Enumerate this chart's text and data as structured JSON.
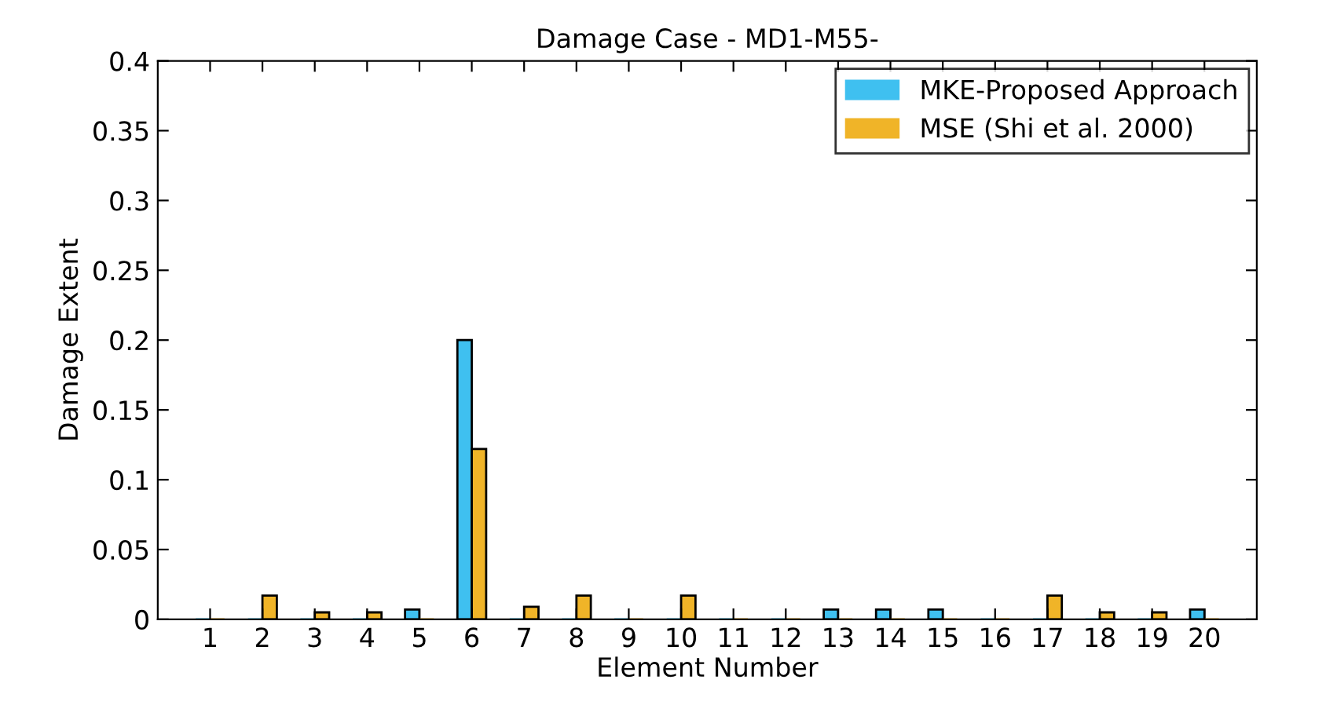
{
  "chart_data": {
    "type": "bar",
    "title": "Damage Case - MD1-M55-",
    "xlabel": "Element Number",
    "ylabel": "Damage Extent",
    "categories": [
      "1",
      "2",
      "3",
      "4",
      "5",
      "6",
      "7",
      "8",
      "9",
      "10",
      "11",
      "12",
      "13",
      "14",
      "15",
      "16",
      "17",
      "18",
      "19",
      "20"
    ],
    "series": [
      {
        "name": "MKE-Proposed Approach",
        "color": "#3fc0f0",
        "values": [
          0,
          0,
          0,
          0,
          0.007,
          0.2,
          0,
          0,
          0,
          0,
          0,
          0,
          0.007,
          0.007,
          0.007,
          0,
          0,
          0,
          0,
          0.007
        ]
      },
      {
        "name": "MSE (Shi et al. 2000)",
        "color": "#f0b428",
        "values": [
          0,
          0.017,
          0.005,
          0.005,
          0,
          0.122,
          0.009,
          0.017,
          0,
          0.017,
          0,
          0,
          0,
          0,
          0,
          0,
          0.017,
          0.005,
          0.005,
          0
        ]
      }
    ],
    "ylim": [
      0,
      0.4
    ],
    "yticks": [
      0,
      0.05,
      0.1,
      0.15,
      0.2,
      0.25,
      0.3,
      0.35,
      0.4
    ],
    "grid": false,
    "legend": "top right"
  }
}
